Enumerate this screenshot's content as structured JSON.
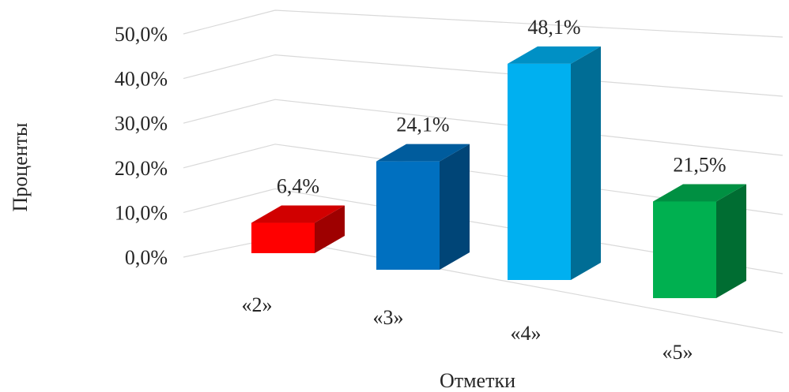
{
  "chart_data": {
    "type": "bar",
    "title": "",
    "xlabel": "Отметки",
    "ylabel": "Проценты",
    "categories": [
      "«2»",
      "«3»",
      "«4»",
      "«5»"
    ],
    "values": [
      6.4,
      24.1,
      48.1,
      21.5
    ],
    "data_labels": [
      "6,4%",
      "24,1%",
      "48,1%",
      "21,5%"
    ],
    "colors": [
      "#ff0000",
      "#0070c0",
      "#00b0f0",
      "#00b050"
    ],
    "ylim": [
      0,
      50
    ],
    "yticks": [
      "0,0%",
      "10,0%",
      "20,0%",
      "30,0%",
      "40,0%",
      "50,0%"
    ],
    "grid": true,
    "style": "3d-perspective"
  }
}
